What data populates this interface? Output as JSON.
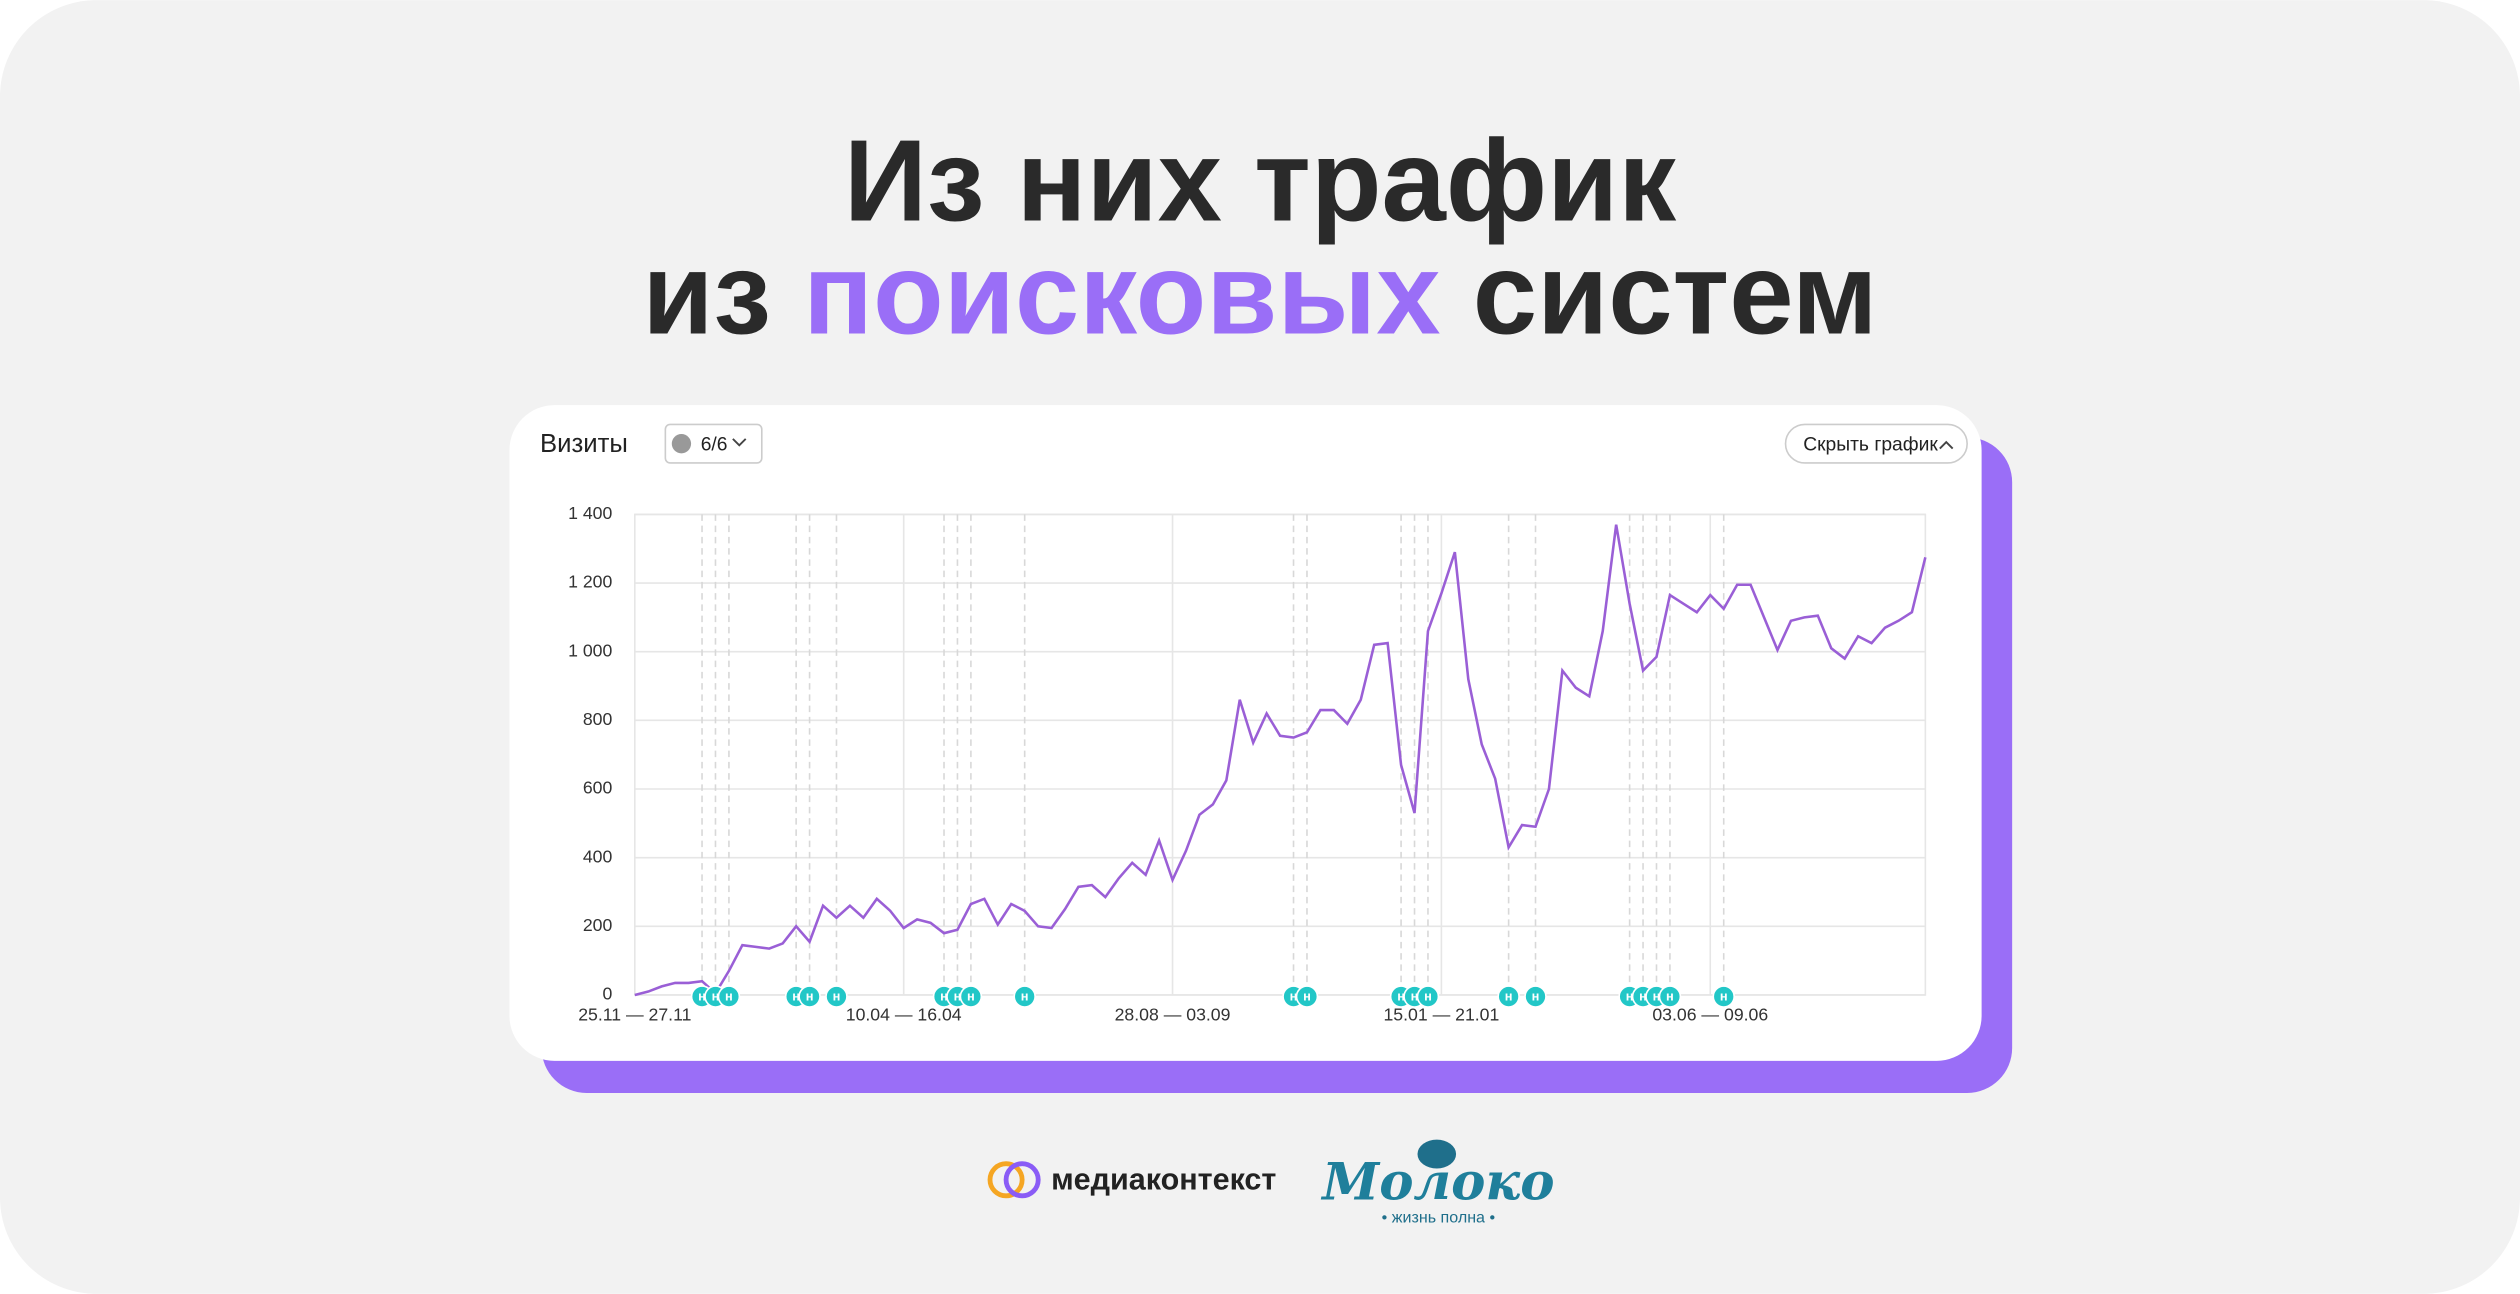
{
  "heading": {
    "line1": "Из них трафик",
    "line2_start": "из",
    "line2_highlight": "поисковых",
    "line2_end": "систем"
  },
  "card": {
    "title": "Визиты",
    "filter": "6/6",
    "hide_button": "Скрыть график"
  },
  "chart_data": {
    "type": "line",
    "color": "#9a5fd6",
    "categories": [
      "25.11 — 27.11",
      null,
      null,
      null,
      null,
      null,
      null,
      null,
      null,
      null,
      null,
      null,
      null,
      null,
      null,
      null,
      null,
      null,
      null,
      null,
      "10.04 — 16.04",
      null,
      null,
      null,
      null,
      null,
      null,
      null,
      null,
      null,
      null,
      null,
      null,
      null,
      null,
      null,
      null,
      null,
      null,
      null,
      "28.08 — 03.09",
      null,
      null,
      null,
      null,
      null,
      null,
      null,
      null,
      null,
      null,
      null,
      null,
      null,
      null,
      null,
      null,
      null,
      null,
      null,
      "15.01 — 21.01",
      null,
      null,
      null,
      null,
      null,
      null,
      null,
      null,
      null,
      null,
      null,
      null,
      null,
      null,
      null,
      null,
      null,
      null,
      null,
      "03.06 — 09.06",
      null,
      null,
      null,
      null,
      null,
      null,
      null,
      null,
      null,
      null,
      null,
      null,
      null,
      null,
      null,
      null
    ],
    "values": [
      0,
      10,
      25,
      35,
      35,
      40,
      5,
      70,
      145,
      140,
      135,
      150,
      200,
      155,
      260,
      225,
      260,
      225,
      280,
      245,
      195,
      220,
      210,
      180,
      190,
      265,
      280,
      205,
      265,
      245,
      200,
      195,
      250,
      315,
      320,
      285,
      340,
      385,
      350,
      450,
      335,
      420,
      525,
      555,
      625,
      860,
      735,
      820,
      755,
      750,
      765,
      830,
      830,
      790,
      860,
      1020,
      1025,
      670,
      530,
      1060,
      1170,
      1290,
      920,
      730,
      630,
      430,
      495,
      490,
      600,
      945,
      895,
      870,
      1060,
      1370,
      1140,
      945,
      985,
      1165,
      1140,
      1115,
      1165,
      1125,
      1195,
      1195,
      1100,
      1005,
      1090,
      1100,
      1105,
      1010,
      980,
      1045,
      1025,
      1070,
      1090,
      1115,
      1275
    ],
    "ylim": [
      0,
      1400
    ],
    "yticks": [
      0,
      200,
      400,
      600,
      800,
      {
        "value": 1000,
        "label": "1 000"
      },
      {
        "value": 1200,
        "label": "1 200"
      },
      {
        "value": 1400,
        "label": "1 400"
      }
    ],
    "grid": true,
    "markers": {
      "label": "н",
      "at": [
        5,
        6,
        7,
        12,
        13,
        15,
        23,
        24,
        25,
        29,
        49,
        50,
        57,
        58,
        59,
        65,
        67,
        74,
        75,
        76,
        77,
        81
      ],
      "color": "#22c7c7"
    }
  },
  "logos": {
    "mediacontext": "медиаконтекст",
    "moloko": "Молоко",
    "moloko_tagline": "• жизнь полна •"
  }
}
